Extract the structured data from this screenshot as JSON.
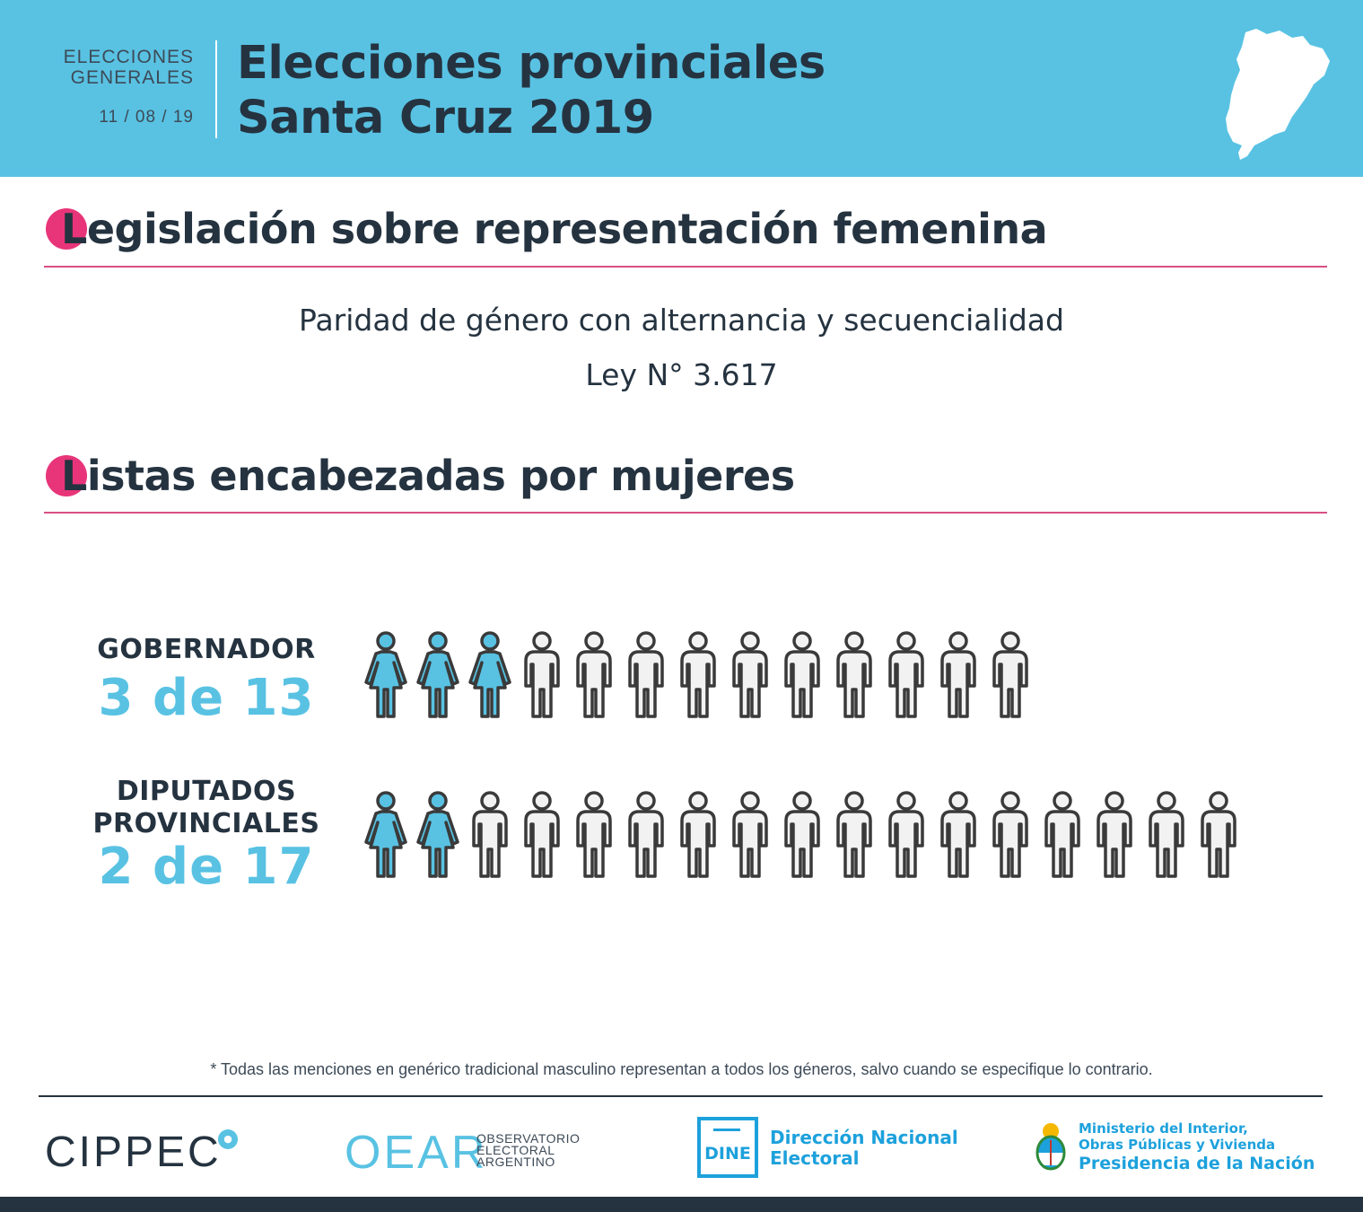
{
  "header": {
    "kicker_line1": "ELECCIONES",
    "kicker_line2": "GENERALES",
    "date": "11 / 08 / 19",
    "title_line1": "Elecciones provinciales",
    "title_line2": "Santa Cruz 2019",
    "map_icon": "santa-cruz-map-icon"
  },
  "sections": {
    "legislation": {
      "title_initial": "L",
      "title_rest": "egislación sobre representación femenina",
      "description": "Paridad de género con alternancia y secuencialidad",
      "law": "Ley N° 3.617"
    },
    "lists": {
      "title_initial": "L",
      "title_rest": "istas encabezadas por mujeres"
    }
  },
  "rows": [
    {
      "category_line1": "GOBERNADOR",
      "category_line2": "",
      "count_label": "3 de 13",
      "women": 3,
      "total": 13
    },
    {
      "category_line1": "DIPUTADOS",
      "category_line2": "PROVINCIALES",
      "count_label": "2 de 17",
      "women": 2,
      "total": 17
    }
  ],
  "colors": {
    "header_bg": "#59c2e3",
    "accent_pink": "#e8357a",
    "woman_fill": "#59c2e3",
    "man_fill": "#f2f2f2",
    "dark": "#253340",
    "dine_blue": "#1da1dc"
  },
  "footer": {
    "note": "* Todas las menciones en genérico tradicional masculino representan a todos los géneros, salvo cuando se especifique lo contrario.",
    "cippec": "CIPPEC",
    "oear": "OEAR",
    "oear_line1": "OBSERVATORIO",
    "oear_line2": "ELECTORAL",
    "oear_line3": "ARGENTINO",
    "dine_abbr": "DINE",
    "dine_line1": "Dirección Nacional",
    "dine_line2": "Electoral",
    "ministry_line1": "Ministerio del Interior,",
    "ministry_line2": "Obras Públicas y Vivienda",
    "ministry_line3": "Presidencia de la Nación"
  }
}
